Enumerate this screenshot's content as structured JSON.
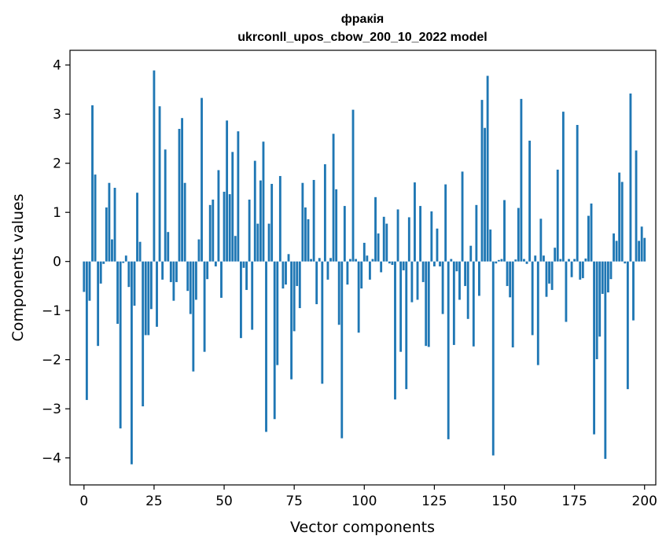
{
  "chart_data": {
    "type": "bar",
    "title": "фракія",
    "subtitle": "ukrconll_upos_cbow_200_10_2022 model",
    "xlabel": "Vector components",
    "ylabel": "Components values",
    "xlim": [
      -5,
      204
    ],
    "ylim": [
      -4.55,
      4.3
    ],
    "xticks": [
      0,
      25,
      50,
      75,
      100,
      125,
      150,
      175,
      200
    ],
    "yticks": [
      -4,
      -3,
      -2,
      -1,
      0,
      1,
      2,
      3,
      4
    ],
    "xtick_labels": [
      "0",
      "25",
      "50",
      "75",
      "100",
      "125",
      "150",
      "175",
      "200"
    ],
    "ytick_labels": [
      "−4",
      "−3",
      "−2",
      "−1",
      "0",
      "1",
      "2",
      "3",
      "4"
    ],
    "bar_color": "#1f77b4",
    "grid": false,
    "values": [
      -0.62,
      -2.82,
      -0.8,
      3.18,
      1.77,
      -1.72,
      -0.45,
      -0.05,
      1.1,
      1.6,
      0.45,
      1.5,
      -1.27,
      -3.4,
      -0.03,
      0.12,
      -0.52,
      -4.13,
      -0.9,
      1.4,
      0.4,
      -2.95,
      -1.5,
      -1.5,
      -0.97,
      3.89,
      -1.33,
      3.16,
      -0.37,
      2.28,
      0.6,
      -0.42,
      -0.8,
      -0.42,
      2.7,
      2.92,
      1.6,
      -0.6,
      -1.07,
      -2.24,
      -0.78,
      0.45,
      3.33,
      -1.84,
      -0.36,
      1.15,
      1.26,
      -0.1,
      1.86,
      -0.74,
      1.42,
      2.87,
      1.37,
      2.23,
      0.52,
      2.65,
      -1.56,
      -0.13,
      -0.58,
      1.26,
      -1.39,
      2.05,
      0.77,
      1.65,
      2.44,
      -3.47,
      0.77,
      1.58,
      -3.21,
      -2.11,
      1.74,
      -0.55,
      -0.47,
      0.15,
      -2.4,
      -1.42,
      -0.5,
      -0.95,
      1.6,
      1.1,
      0.86,
      0.05,
      1.66,
      -0.87,
      0.07,
      -2.49,
      1.98,
      -0.37,
      0.07,
      2.6,
      1.47,
      -1.29,
      -3.6,
      1.13,
      -0.47,
      0.05,
      3.09,
      0.05,
      -1.45,
      -0.55,
      0.38,
      0.12,
      -0.37,
      0.05,
      1.31,
      0.57,
      -0.22,
      0.91,
      0.77,
      -0.04,
      -0.07,
      -2.81,
      1.06,
      -1.84,
      -0.18,
      -2.6,
      0.9,
      -0.83,
      1.61,
      -0.78,
      1.13,
      -0.42,
      -1.72,
      -1.74,
      1.02,
      -0.1,
      0.67,
      -0.1,
      -1.07,
      1.57,
      -3.62,
      0.05,
      -1.7,
      -0.2,
      -0.78,
      1.83,
      -0.5,
      -1.17,
      0.32,
      -1.73,
      1.15,
      -0.7,
      3.29,
      2.72,
      3.78,
      0.65,
      -3.95,
      -0.04,
      0.03,
      0.05,
      1.25,
      -0.5,
      -0.73,
      -1.75,
      0.04,
      1.09,
      3.31,
      0.05,
      -0.05,
      2.46,
      -1.5,
      0.12,
      -2.11,
      0.87,
      0.12,
      -0.72,
      -0.45,
      -0.58,
      0.28,
      1.87,
      0.05,
      3.05,
      -1.23,
      0.05,
      -0.32,
      0.05,
      2.78,
      -0.37,
      -0.34,
      0.06,
      0.93,
      1.18,
      -3.52,
      -1.99,
      -1.53,
      -0.66,
      -4.02,
      -0.63,
      -0.36,
      0.57,
      0.42,
      1.81,
      1.62,
      -0.04,
      -2.6,
      3.42,
      -1.2,
      2.26,
      0.42,
      0.71,
      0.48
    ]
  }
}
